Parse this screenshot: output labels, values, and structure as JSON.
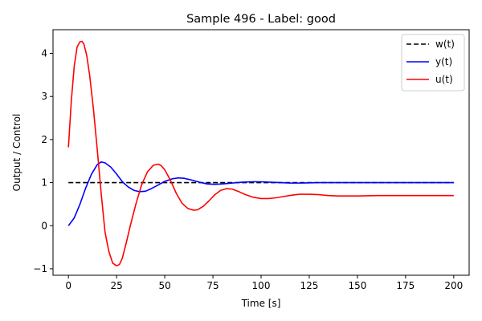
{
  "chart_data": {
    "type": "line",
    "title": "Sample 496 - Label: good",
    "xlabel": "Time [s]",
    "ylabel": "Output / Control",
    "xlim": [
      -8,
      208
    ],
    "ylim": [
      -1.15,
      4.55
    ],
    "xticks": [
      0,
      25,
      50,
      75,
      100,
      125,
      150,
      175,
      200
    ],
    "yticks": [
      -1,
      0,
      1,
      2,
      3,
      4
    ],
    "grid": false,
    "legend_position": "top-right",
    "series": [
      {
        "name": "w(t)",
        "color": "#000000",
        "dash": "dashed",
        "x": [
          0,
          200
        ],
        "y": [
          1.0,
          1.0
        ]
      },
      {
        "name": "y(t)",
        "color": "#0000ff",
        "dash": "solid",
        "x": [
          0,
          3,
          6,
          9,
          12,
          15,
          17,
          19,
          22,
          25,
          28,
          31,
          34,
          37,
          40,
          43,
          46,
          50,
          54,
          57,
          60,
          64,
          68,
          72,
          76,
          80,
          85,
          90,
          95,
          100,
          105,
          110,
          115,
          120,
          130,
          140,
          150,
          160,
          170,
          180,
          190,
          200
        ],
        "y": [
          0.0,
          0.18,
          0.5,
          0.88,
          1.2,
          1.42,
          1.48,
          1.46,
          1.36,
          1.2,
          1.02,
          0.9,
          0.82,
          0.79,
          0.8,
          0.86,
          0.93,
          1.03,
          1.09,
          1.11,
          1.1,
          1.06,
          1.01,
          0.97,
          0.96,
          0.97,
          0.99,
          1.01,
          1.02,
          1.02,
          1.01,
          1.0,
          0.99,
          0.99,
          1.0,
          1.0,
          1.0,
          1.0,
          1.0,
          1.0,
          1.0,
          1.0
        ]
      },
      {
        "name": "u(t)",
        "color": "#ff0000",
        "dash": "solid",
        "x": [
          0,
          1.5,
          3,
          4.5,
          6,
          7,
          8,
          9.5,
          11,
          13,
          15,
          17,
          19,
          21,
          23,
          25,
          26.5,
          28,
          30,
          32,
          35,
          38,
          41,
          44,
          46.5,
          48,
          50,
          53,
          56,
          59,
          62,
          65,
          67,
          70,
          73,
          76,
          79,
          82,
          85,
          88,
          92,
          96,
          100,
          104,
          108,
          112,
          116,
          120,
          125,
          130,
          135,
          140,
          145,
          150,
          160,
          170,
          180,
          190,
          200
        ],
        "y": [
          1.82,
          2.9,
          3.7,
          4.15,
          4.27,
          4.28,
          4.22,
          3.95,
          3.5,
          2.7,
          1.75,
          0.75,
          -0.15,
          -0.6,
          -0.87,
          -0.93,
          -0.9,
          -0.75,
          -0.4,
          -0.02,
          0.5,
          0.95,
          1.25,
          1.4,
          1.43,
          1.4,
          1.3,
          1.05,
          0.75,
          0.52,
          0.4,
          0.36,
          0.37,
          0.45,
          0.58,
          0.72,
          0.82,
          0.86,
          0.85,
          0.8,
          0.72,
          0.66,
          0.63,
          0.63,
          0.65,
          0.68,
          0.71,
          0.73,
          0.73,
          0.72,
          0.7,
          0.69,
          0.69,
          0.69,
          0.7,
          0.7,
          0.7,
          0.7,
          0.7
        ]
      }
    ]
  }
}
